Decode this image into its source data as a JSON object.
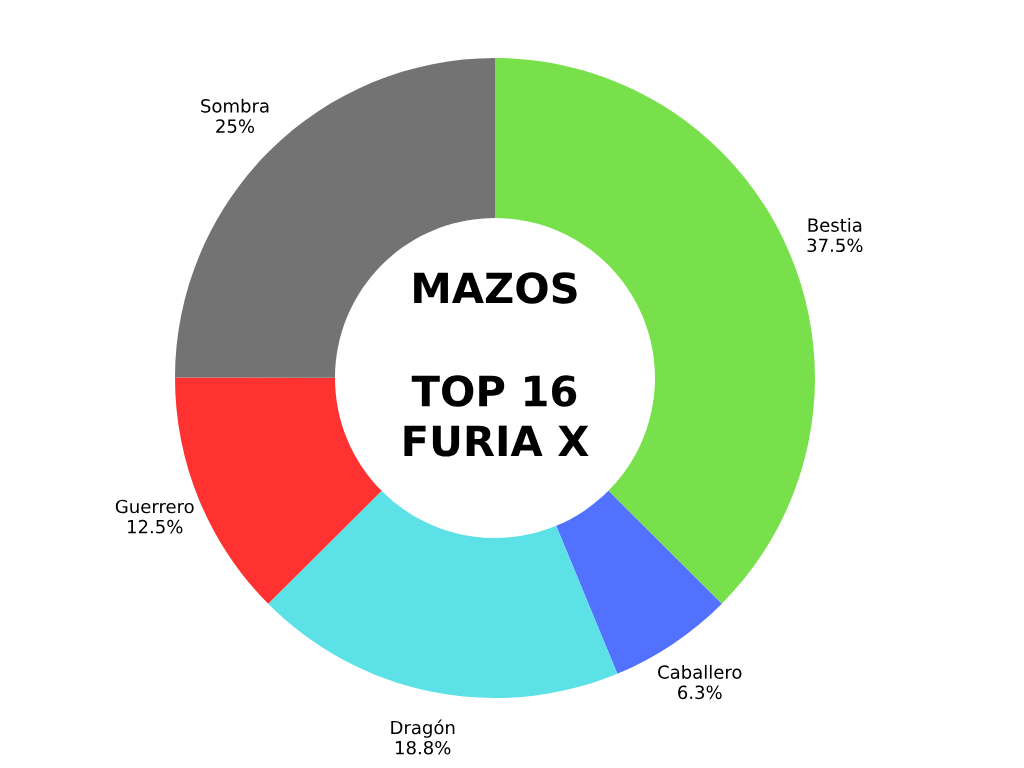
{
  "chart_data": {
    "type": "donut",
    "title": "MAZOS",
    "subtitle": "TOP 16\nFURIA X",
    "categories": [
      "Bestia",
      "Caballero",
      "Dragón",
      "Guerrero",
      "Sombra"
    ],
    "values": [
      37.5,
      6.3,
      18.8,
      12.5,
      25
    ],
    "value_labels": [
      "37.5%",
      "6.3%",
      "18.8%",
      "12.5%",
      "25%"
    ],
    "colors": [
      "#77e04a",
      "#5271ff",
      "#5ce1e6",
      "#ff3131",
      "#737373"
    ],
    "legend": false
  }
}
